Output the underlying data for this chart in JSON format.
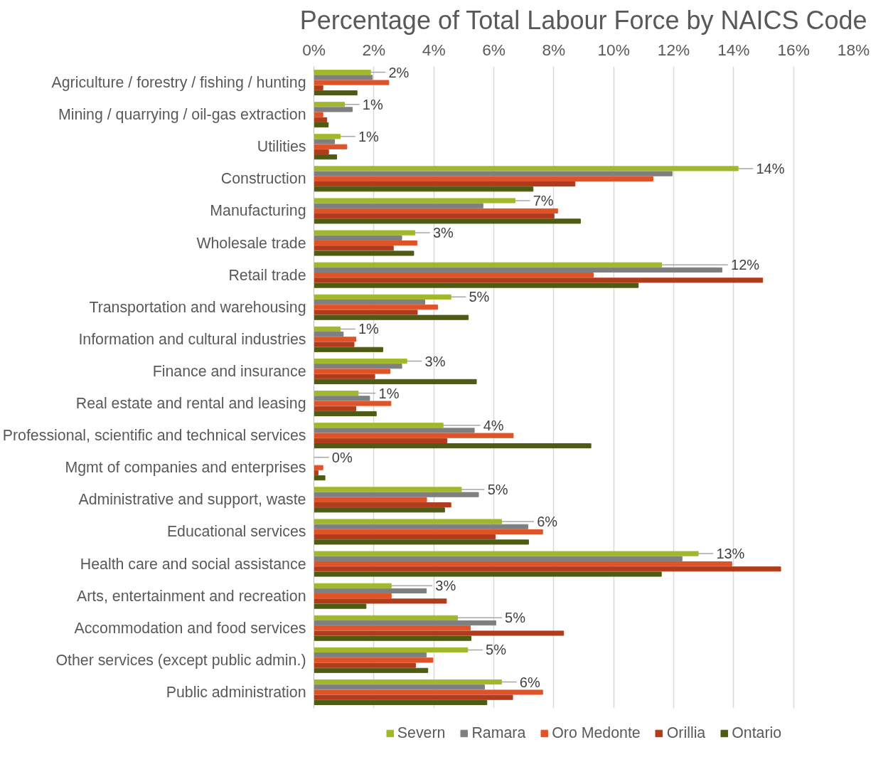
{
  "chart_data": {
    "type": "bar",
    "orientation": "horizontal",
    "title": "Percentage of Total Labour Force by NAICS Code",
    "categories": [
      "Agriculture / forestry / fishing / hunting",
      "Mining / quarrying / oil-gas extraction",
      "Utilities",
      "Construction",
      "Manufacturing",
      "Wholesale trade",
      "Retail trade",
      "Transportation and warehousing",
      "Information and cultural industries",
      "Finance and insurance",
      "Real estate and rental and leasing",
      "Professional, scientific and technical services",
      "Mgmt of companies and enterprises",
      "Administrative and support, waste",
      "Educational services",
      "Health care and social assistance",
      "Arts, entertainment and recreation",
      "Accommodation and food services",
      "Other services (except public admin.)",
      "Public administration"
    ],
    "series": [
      {
        "name": "Severn",
        "color": "#a2b82c",
        "values": [
          1.89,
          1.02,
          0.88,
          14.15,
          6.71,
          3.37,
          11.6,
          4.57,
          0.88,
          3.1,
          1.48,
          4.31,
          0,
          4.92,
          6.26,
          12.82,
          2.58,
          4.79,
          5.13,
          6.26
        ],
        "value_labels": [
          "2%",
          "1%",
          "1%",
          "14%",
          "7%",
          "3%",
          "12%",
          "5%",
          "1%",
          "3%",
          "1%",
          "4%",
          "0%",
          "5%",
          "6%",
          "13%",
          "3%",
          "5%",
          "5%",
          "6%"
        ]
      },
      {
        "name": "Ramara",
        "color": "#7f7f7f",
        "values": [
          1.95,
          1.28,
          0.69,
          11.95,
          5.64,
          2.93,
          13.61,
          3.7,
          0.98,
          2.93,
          1.86,
          5.35,
          0,
          5.49,
          7.14,
          12.28,
          3.75,
          6.07,
          3.75,
          5.69
        ]
      },
      {
        "name": "Oro Medonte",
        "color": "#e05227",
        "values": [
          2.5,
          0.3,
          1.1,
          11.31,
          8.13,
          3.44,
          9.32,
          4.13,
          1.4,
          2.54,
          2.57,
          6.65,
          0.3,
          3.76,
          7.63,
          13.94,
          2.58,
          5.22,
          3.97,
          7.63
        ]
      },
      {
        "name": "Orillia",
        "color": "#b03c1c",
        "values": [
          0.3,
          0.43,
          0.49,
          8.71,
          8.01,
          2.65,
          14.97,
          3.45,
          1.34,
          2.03,
          1.4,
          4.44,
          0.14,
          4.57,
          6.05,
          15.57,
          4.42,
          8.33,
          3.39,
          6.63
        ]
      },
      {
        "name": "Ontario",
        "color": "#4e5b12",
        "values": [
          1.44,
          0.48,
          0.76,
          7.31,
          8.89,
          3.33,
          10.82,
          5.15,
          2.3,
          5.42,
          2.08,
          9.24,
          0.37,
          4.36,
          7.16,
          11.59,
          1.74,
          5.24,
          3.8,
          5.77
        ]
      }
    ],
    "xlim": [
      0,
      18
    ],
    "xticks": [
      {
        "value": 0,
        "label": "0%"
      },
      {
        "value": 2,
        "label": "2%"
      },
      {
        "value": 4,
        "label": "4%"
      },
      {
        "value": 6,
        "label": "6%"
      },
      {
        "value": 8,
        "label": "8%"
      },
      {
        "value": 10,
        "label": "10%"
      },
      {
        "value": 12,
        "label": "12%"
      },
      {
        "value": 14,
        "label": "14%"
      },
      {
        "value": 16,
        "label": "16%"
      },
      {
        "value": 18,
        "label": "18%"
      }
    ],
    "grid": "x",
    "legend": "bottom"
  }
}
